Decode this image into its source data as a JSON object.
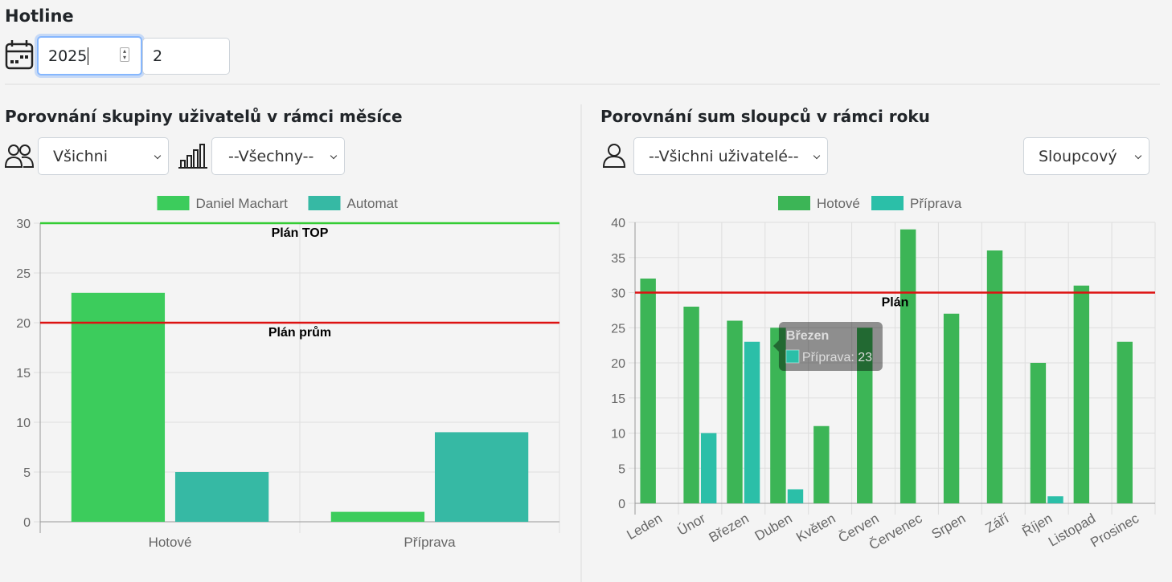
{
  "header": {
    "title": "Hotline",
    "year": "2025",
    "month": "2"
  },
  "left_panel": {
    "filters": [
      "Všichni",
      "--Všechny--"
    ]
  },
  "right_panel": {
    "filters": [
      "--Všichni uživatelé--",
      "Sloupcový"
    ]
  },
  "chart_data": [
    {
      "type": "bar",
      "title": "Porovnání skupiny uživatelů v rámci měsíce",
      "categories": [
        "Hotové",
        "Příprava"
      ],
      "series": [
        {
          "name": "Daniel Machart",
          "color": "#3ccc5c",
          "values": [
            23,
            1
          ]
        },
        {
          "name": "Automat",
          "color": "#36b9a4",
          "values": [
            5,
            9
          ]
        }
      ],
      "ylim": [
        0,
        30
      ],
      "yticks": [
        0,
        5,
        10,
        15,
        20,
        25,
        30
      ],
      "grid": true,
      "reference_lines": [
        {
          "value": 30,
          "label": "Plán TOP",
          "color": "#33cc33"
        },
        {
          "value": 20,
          "label": "Plán prům",
          "color": "#dd1111"
        }
      ]
    },
    {
      "type": "bar",
      "title": "Porovnání sum sloupců v rámci roku",
      "categories": [
        "Leden",
        "Únor",
        "Březen",
        "Duben",
        "Květen",
        "Červen",
        "Červenec",
        "Srpen",
        "Září",
        "Říjen",
        "Listopad",
        "Prosinec"
      ],
      "series": [
        {
          "name": "Hotové",
          "color": "#3cb556",
          "values": [
            32,
            28,
            26,
            25,
            11,
            25,
            39,
            27,
            36,
            20,
            31,
            23
          ]
        },
        {
          "name": "Příprava",
          "color": "#2bbfa8",
          "values": [
            0,
            10,
            23,
            2,
            0,
            0,
            0,
            0,
            0,
            1,
            0,
            0
          ]
        }
      ],
      "ylim": [
        0,
        40
      ],
      "yticks": [
        0,
        5,
        10,
        15,
        20,
        25,
        30,
        35,
        40
      ],
      "grid": true,
      "reference_lines": [
        {
          "value": 30,
          "label": "Plán",
          "color": "#dd1111"
        }
      ],
      "tooltip": {
        "title": "Březen",
        "text": "Příprava: 23"
      }
    }
  ]
}
